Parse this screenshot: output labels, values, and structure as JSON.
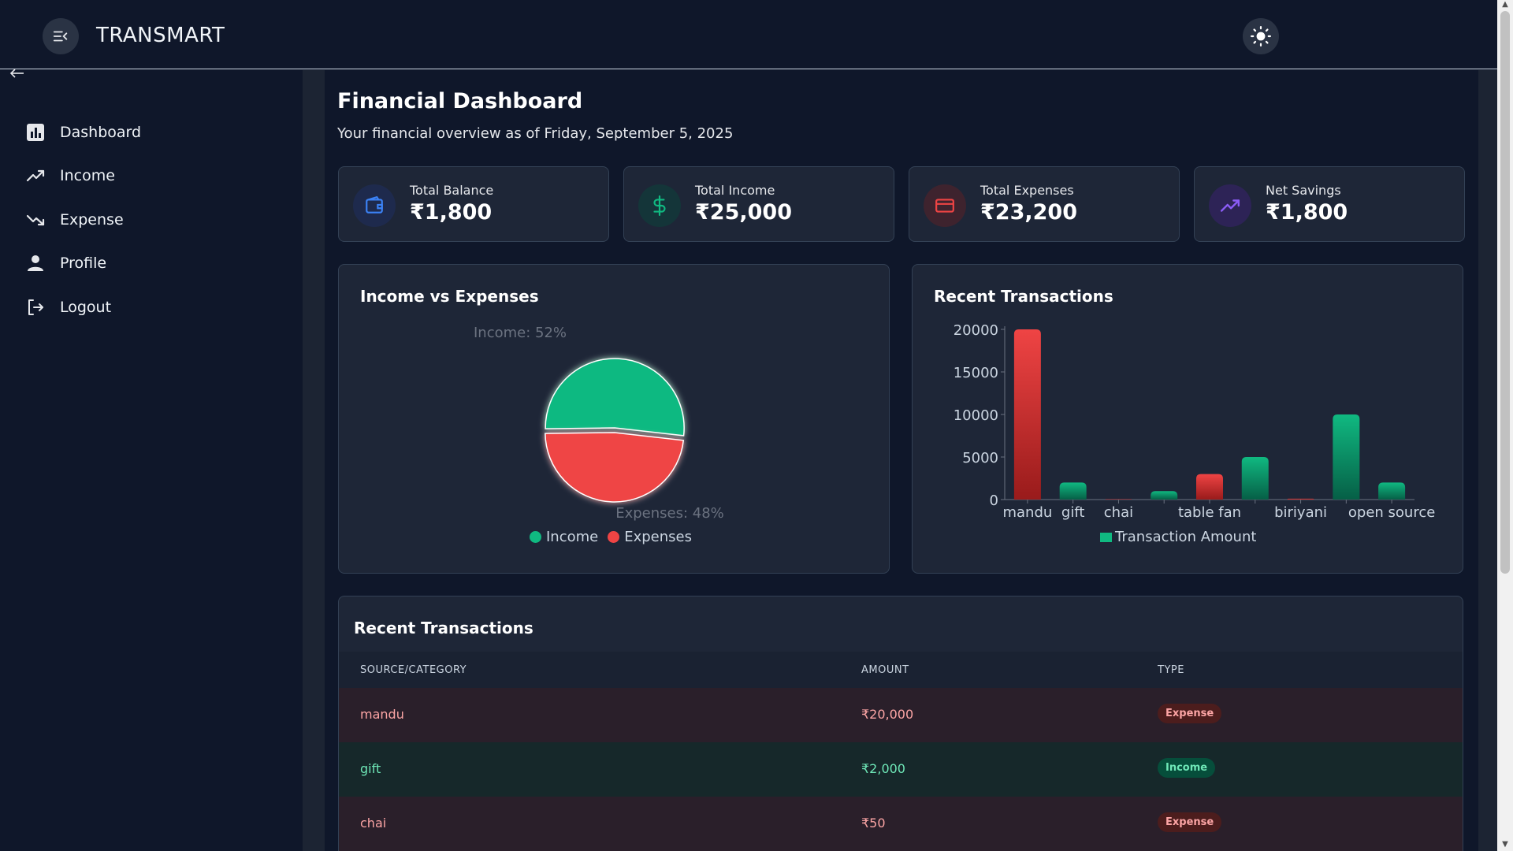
{
  "header": {
    "brand": "TRANSMART",
    "menu_icon": "menu-collapse-icon",
    "theme_icon": "sun-icon"
  },
  "sidebar": {
    "back_icon": "arrow-left-icon",
    "items": [
      {
        "label": "Dashboard",
        "icon": "bar-chart-icon"
      },
      {
        "label": "Income",
        "icon": "trending-up-icon"
      },
      {
        "label": "Expense",
        "icon": "trending-down-icon"
      },
      {
        "label": "Profile",
        "icon": "user-icon"
      },
      {
        "label": "Logout",
        "icon": "logout-icon"
      }
    ]
  },
  "main": {
    "title": "Financial Dashboard",
    "subtitle": "Your financial overview as of Friday, September 5, 2025",
    "cards": [
      {
        "label": "Total Balance",
        "value": "₹1,800",
        "icon": "wallet-icon",
        "color": "#3b82f6"
      },
      {
        "label": "Total Income",
        "value": "₹25,000",
        "icon": "dollar-icon",
        "color": "#10b981"
      },
      {
        "label": "Total Expenses",
        "value": "₹23,200",
        "icon": "credit-card-icon",
        "color": "#ef4444"
      },
      {
        "label": "Net Savings",
        "value": "₹1,800",
        "icon": "trending-up-icon",
        "color": "#8b5cf6"
      }
    ],
    "pie_panel": {
      "title": "Income vs Expenses",
      "income_label": "Income: 52%",
      "expense_label": "Expenses: 48%",
      "legend": [
        "Income",
        "Expenses"
      ]
    },
    "bar_panel": {
      "title": "Recent Transactions",
      "legend": "Transaction Amount"
    },
    "table": {
      "title": "Recent Transactions",
      "headers": [
        "SOURCE/CATEGORY",
        "AMOUNT",
        "TYPE"
      ],
      "rows": [
        {
          "source": "mandu",
          "amount": "₹20,000",
          "type": "Expense"
        },
        {
          "source": "gift",
          "amount": "₹2,000",
          "type": "Income"
        },
        {
          "source": "chai",
          "amount": "₹50",
          "type": "Expense"
        }
      ]
    }
  },
  "colors": {
    "income": "#10b981",
    "expense": "#ef4444",
    "bg": "#0f172a",
    "panel": "#1e2637"
  },
  "chart_data": [
    {
      "type": "pie",
      "title": "Income vs Expenses",
      "categories": [
        "Income",
        "Expenses"
      ],
      "values": [
        52,
        48
      ],
      "legend": "bottom"
    },
    {
      "type": "bar",
      "title": "Recent Transactions",
      "categories": [
        "mandu",
        "gift",
        "chai",
        "",
        "table fan",
        "",
        "biriyani",
        "",
        "open source"
      ],
      "values": [
        20000,
        2000,
        50,
        1000,
        3000,
        5000,
        100,
        10000,
        2000
      ],
      "bar_types": [
        "Expense",
        "Income",
        "Expense",
        "Income",
        "Expense",
        "Income",
        "Expense",
        "Income",
        "Income"
      ],
      "series": [
        {
          "name": "Transaction Amount",
          "values": [
            20000,
            2000,
            50,
            1000,
            3000,
            5000,
            100,
            10000,
            2000
          ]
        }
      ],
      "yticks": [
        0,
        5000,
        10000,
        15000,
        20000
      ],
      "ylim": [
        0,
        20000
      ],
      "legend": "bottom"
    }
  ]
}
